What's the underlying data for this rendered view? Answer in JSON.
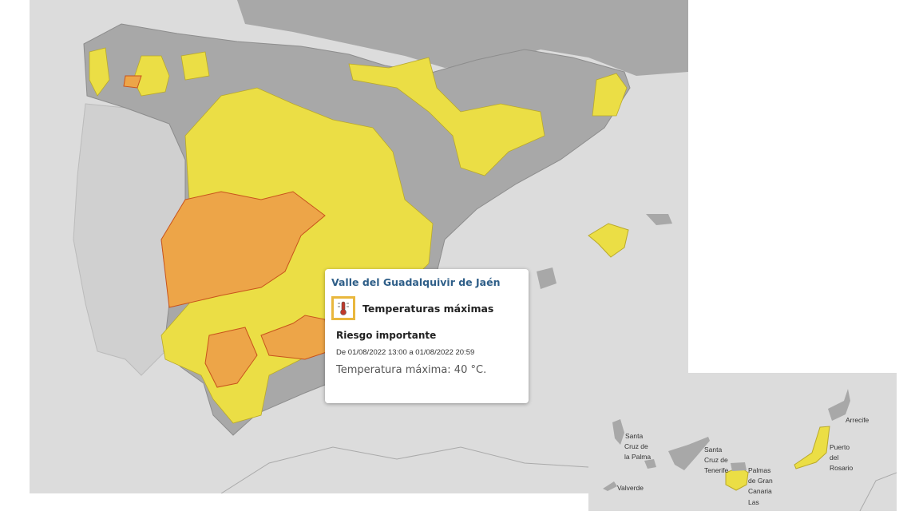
{
  "colors": {
    "sea": "#dcdcdc",
    "land": "#a8a8a8",
    "portugal": "#d4d4d4",
    "yellow_warning": "#ebde45",
    "orange_warning": "#eda548",
    "orange_border": "#c8531c"
  },
  "popup": {
    "zone": "Valle del Guadalquivir de Jaén",
    "icon": "thermometer-icon",
    "phenomenon": "Temperaturas máximas",
    "level": "Riesgo importante",
    "period": "De 01/08/2022 13:00 a 01/08/2022 20:59",
    "description": "Temperatura máxima: 40 °C."
  },
  "canary_inset": {
    "labels": [
      "Santa",
      "Cruz de",
      "la Palma",
      "Santa",
      "Cruz de",
      "Tenerife",
      "Palmas",
      "de Gran",
      "Canaria",
      "Las",
      "Puerto",
      "del",
      "Rosario",
      "Arrecife",
      "Valverde"
    ]
  }
}
